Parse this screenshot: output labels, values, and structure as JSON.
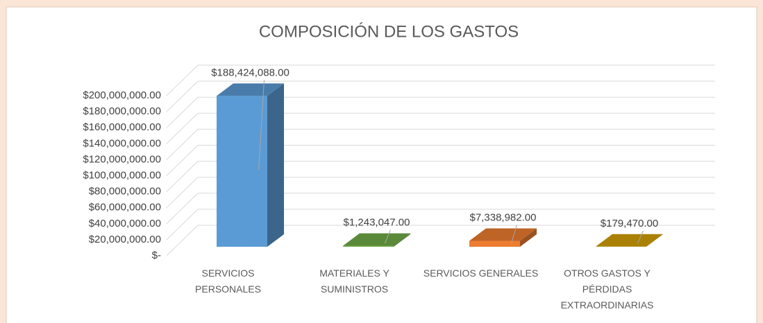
{
  "chart_data": {
    "type": "bar3d",
    "title": "COMPOSICIÓN DE LOS GASTOS",
    "categories": [
      "SERVICIOS PERSONALES",
      "MATERIALES Y SUMINISTROS",
      "SERVICIOS GENERALES",
      "OTROS GASTOS Y PÉRDIDAS EXTRAORDINARIAS"
    ],
    "values": [
      188424088,
      1243047,
      7338982,
      179470
    ],
    "value_labels": [
      "$188,424,088.00",
      "$1,243,047.00",
      "$7,338,982.00",
      "$179,470.00"
    ],
    "colors": [
      "#5b9bd5",
      "#70ad47",
      "#ed7d31",
      "#d4a106"
    ],
    "ylim": [
      0,
      200000000
    ],
    "yticks": [
      {
        "value": 0,
        "label": "$-"
      },
      {
        "value": 20000000,
        "label": "$20,000,000.00"
      },
      {
        "value": 40000000,
        "label": "$40,000,000.00"
      },
      {
        "value": 60000000,
        "label": "$60,000,000.00"
      },
      {
        "value": 80000000,
        "label": "$80,000,000.00"
      },
      {
        "value": 100000000,
        "label": "$100,000,000.00"
      },
      {
        "value": 120000000,
        "label": "$120,000,000.00"
      },
      {
        "value": 140000000,
        "label": "$140,000,000.00"
      },
      {
        "value": 160000000,
        "label": "$160,000,000.00"
      },
      {
        "value": 180000000,
        "label": "$180,000,000.00"
      },
      {
        "value": 200000000,
        "label": "$200,000,000.00"
      }
    ],
    "grid": true
  }
}
